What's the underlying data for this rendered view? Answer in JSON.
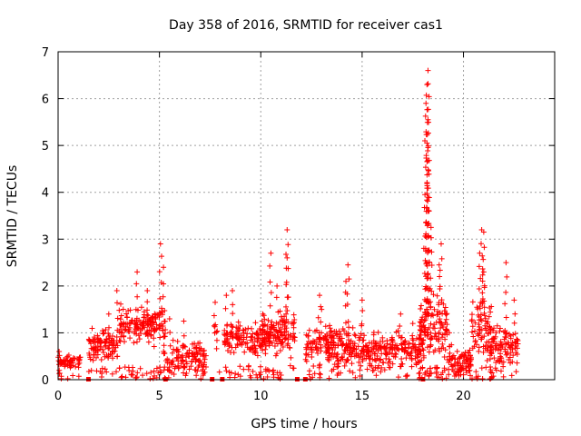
{
  "chart_data": {
    "type": "scatter",
    "title": "Day 358 of 2016, SRMTID for receiver cas1",
    "xlabel": "GPS time / hours",
    "ylabel": "SRMTID / TECUs",
    "xlim": [
      0,
      24.5
    ],
    "ylim": [
      0,
      7
    ],
    "xticks": [
      0,
      5,
      10,
      15,
      20
    ],
    "yticks": [
      0,
      1,
      2,
      3,
      4,
      5,
      6,
      7
    ],
    "grid": true,
    "marker": "+",
    "color": "#ff0000",
    "clusters": [
      {
        "x_start": 0.0,
        "x_end": 1.1,
        "baseline": 0.38,
        "spread": 0.12,
        "count": 60,
        "peaks": [
          [
            0.05,
            0.6
          ]
        ]
      },
      {
        "x_start": 1.5,
        "x_end": 3.0,
        "baseline": 0.75,
        "spread": 0.3,
        "count": 110,
        "peaks": [
          [
            2.9,
            1.9
          ],
          [
            2.5,
            1.4
          ]
        ]
      },
      {
        "x_start": 3.0,
        "x_end": 5.3,
        "baseline": 1.15,
        "spread": 0.35,
        "count": 190,
        "peaks": [
          [
            3.9,
            2.3
          ],
          [
            4.4,
            1.9
          ],
          [
            5.05,
            2.9
          ],
          [
            5.2,
            2.4
          ]
        ]
      },
      {
        "x_start": 5.2,
        "x_end": 7.3,
        "baseline": 0.45,
        "spread": 0.3,
        "count": 130,
        "peaks": [
          [
            6.2,
            1.25
          ],
          [
            5.5,
            1.3
          ]
        ]
      },
      {
        "x_start": 7.7,
        "x_end": 8.0,
        "baseline": 0.9,
        "spread": 0.5,
        "count": 8,
        "peaks": [
          [
            7.75,
            1.65
          ]
        ]
      },
      {
        "x_start": 8.2,
        "x_end": 10.5,
        "baseline": 0.9,
        "spread": 0.3,
        "count": 170,
        "peaks": [
          [
            8.6,
            1.9
          ],
          [
            8.3,
            1.8
          ],
          [
            10.1,
            1.4
          ]
        ]
      },
      {
        "x_start": 10.0,
        "x_end": 11.7,
        "baseline": 0.95,
        "spread": 0.4,
        "count": 120,
        "peaks": [
          [
            10.5,
            2.7
          ],
          [
            11.3,
            3.2
          ],
          [
            11.3,
            2.6
          ],
          [
            10.8,
            2.0
          ]
        ]
      },
      {
        "x_start": 12.2,
        "x_end": 13.3,
        "baseline": 0.75,
        "spread": 0.35,
        "count": 70,
        "peaks": [
          [
            12.9,
            1.8
          ],
          [
            13.0,
            1.5
          ]
        ]
      },
      {
        "x_start": 13.3,
        "x_end": 15.1,
        "baseline": 0.7,
        "spread": 0.4,
        "count": 150,
        "peaks": [
          [
            14.3,
            2.45
          ],
          [
            14.2,
            2.1
          ],
          [
            15.0,
            1.7
          ]
        ]
      },
      {
        "x_start": 15.1,
        "x_end": 18.0,
        "baseline": 0.65,
        "spread": 0.3,
        "count": 200,
        "peaks": [
          [
            16.9,
            1.4
          ],
          [
            17.5,
            1.2
          ]
        ]
      },
      {
        "x_start": 17.8,
        "x_end": 19.2,
        "baseline": 1.1,
        "spread": 0.6,
        "count": 140,
        "peaks": [
          [
            18.25,
            6.6
          ],
          [
            18.2,
            6.3
          ],
          [
            18.15,
            5.9
          ],
          [
            18.25,
            5.55
          ],
          [
            18.2,
            5.05
          ],
          [
            18.1,
            3.95
          ],
          [
            18.3,
            3.6
          ],
          [
            18.4,
            3.25
          ],
          [
            18.9,
            2.9
          ],
          [
            18.8,
            2.45
          ]
        ]
      },
      {
        "x_start": 19.2,
        "x_end": 20.4,
        "baseline": 0.4,
        "spread": 0.25,
        "count": 90,
        "peaks": [
          [
            19.3,
            1.0
          ]
        ]
      },
      {
        "x_start": 20.4,
        "x_end": 21.4,
        "baseline": 1.1,
        "spread": 0.55,
        "count": 80,
        "peaks": [
          [
            20.9,
            3.2
          ],
          [
            21.0,
            3.15
          ],
          [
            20.8,
            2.7
          ],
          [
            21.0,
            2.3
          ]
        ]
      },
      {
        "x_start": 21.3,
        "x_end": 22.7,
        "baseline": 0.7,
        "spread": 0.35,
        "count": 110,
        "peaks": [
          [
            22.1,
            2.5
          ],
          [
            22.5,
            1.7
          ],
          [
            21.5,
            1.1
          ]
        ]
      }
    ],
    "baseline_markers_x": [
      1.5,
      5.3,
      7.6,
      8.1,
      11.8,
      12.2,
      18.0
    ]
  }
}
